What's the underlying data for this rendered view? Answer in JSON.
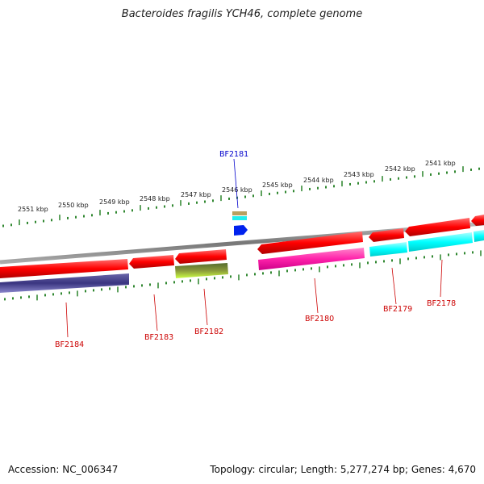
{
  "title": "Bacteroides fragilis YCH46, complete genome",
  "footer": {
    "accession": "Accession: NC_006347",
    "info": "Topology: circular; Length: 5,277,274 bp; Genes: 4,670"
  },
  "ruler": {
    "labels": [
      "2551 kbp",
      "2550 kbp",
      "2549 kbp",
      "2548 kbp",
      "2547 kbp",
      "2546 kbp",
      "2545 kbp",
      "2544 kbp",
      "2543 kbp",
      "2542 kbp",
      "2541 kbp"
    ]
  },
  "genes": [
    {
      "label": "BF2181",
      "color": "#0000cc"
    },
    {
      "label": "BF2184",
      "color": "#cc0000"
    },
    {
      "label": "BF2183",
      "color": "#cc0000"
    },
    {
      "label": "BF2182",
      "color": "#cc0000"
    },
    {
      "label": "BF2180",
      "color": "#cc0000"
    },
    {
      "label": "BF2179",
      "color": "#cc0000"
    },
    {
      "label": "BF2178",
      "color": "#cc0000"
    }
  ],
  "colors": {
    "backbone": "#888888",
    "ticks": "#1a7a1a",
    "gene_red": "#ff1a1a",
    "magenta": "#ff33aa",
    "cyan": "#00ffff",
    "navy": "#3a3580",
    "olive": "#6b7a1a",
    "lime": "#aaff33",
    "tan": "#b8a060",
    "blue": "#0022ee"
  }
}
